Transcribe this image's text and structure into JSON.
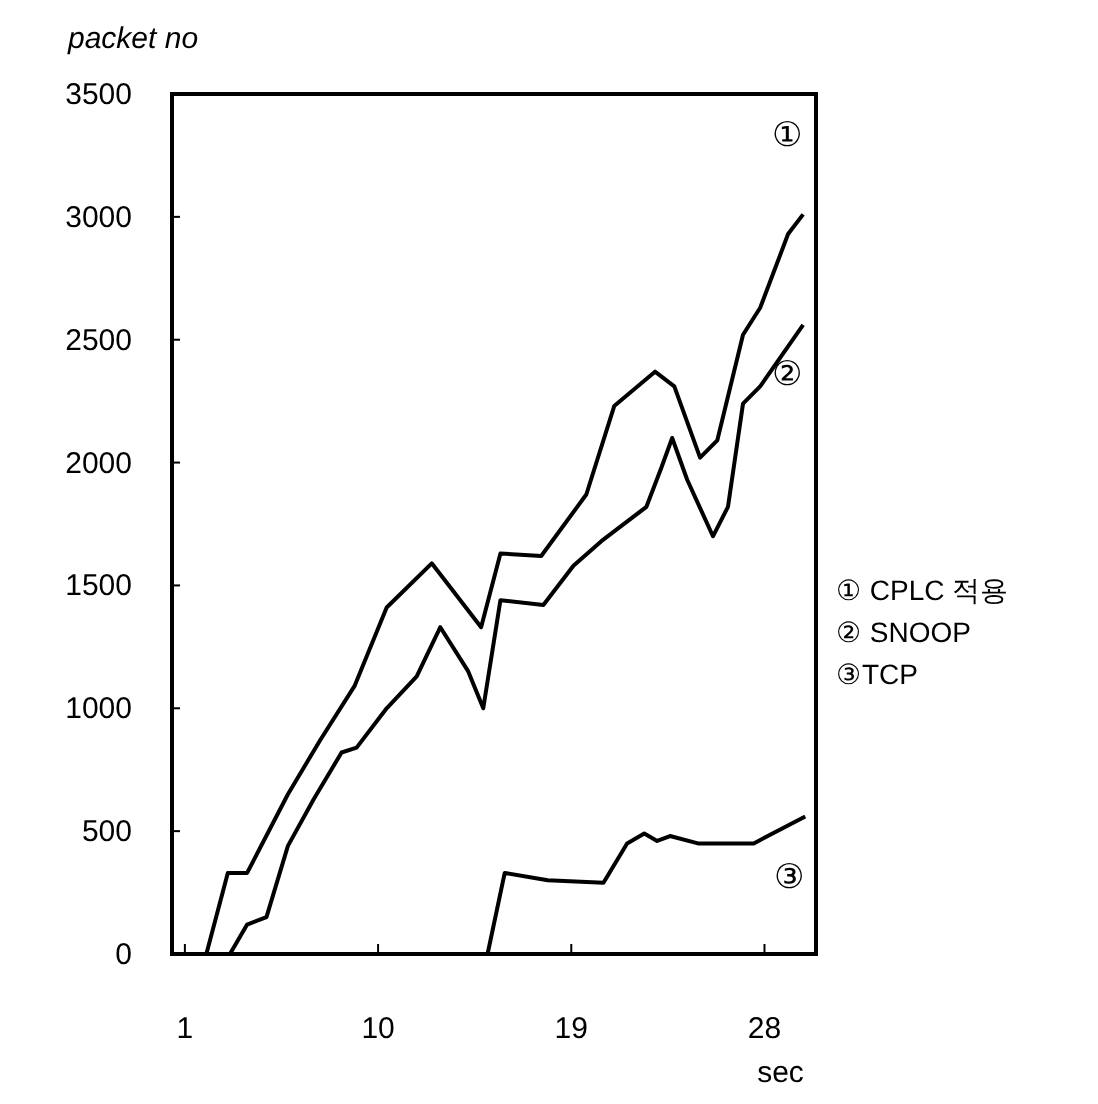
{
  "chart_data": {
    "type": "line",
    "ylabel": "packet no",
    "xlabel": "sec",
    "xlim": [
      0.4,
      30.4
    ],
    "ylim": [
      0,
      3500
    ],
    "xticks": [
      1,
      10,
      19,
      28
    ],
    "yticks": [
      0,
      500,
      1000,
      1500,
      2000,
      2500,
      3000,
      3500
    ],
    "grid": false,
    "legend": "right",
    "marker": "none",
    "line_style": "solid",
    "series": [
      {
        "name": "① CPLC 적용",
        "color": "#000000",
        "x": [
          2.0,
          3.0,
          3.9,
          5.8,
          7.3,
          8.9,
          10.4,
          12.5,
          14.8,
          15.7,
          17.6,
          19.7,
          21.0,
          22.9,
          23.8,
          25.0,
          25.8,
          27.0,
          27.8,
          29.1,
          29.8
        ],
        "values": [
          0,
          330,
          330,
          650,
          870,
          1090,
          1410,
          1590,
          1330,
          1630,
          1620,
          1870,
          2230,
          2370,
          2310,
          2020,
          2090,
          2520,
          2630,
          2930,
          3010
        ]
      },
      {
        "name": "② SNOOP",
        "color": "#000000",
        "x": [
          3.1,
          3.9,
          4.8,
          5.8,
          7.0,
          8.3,
          9.0,
          10.4,
          11.8,
          12.9,
          14.2,
          14.9,
          15.7,
          17.7,
          19.1,
          20.4,
          22.5,
          23.2,
          23.7,
          24.4,
          25.6,
          26.3,
          27.0,
          27.8,
          29.8
        ],
        "values": [
          0,
          120,
          150,
          440,
          630,
          820,
          840,
          1000,
          1130,
          1330,
          1150,
          1000,
          1440,
          1420,
          1580,
          1680,
          1820,
          1980,
          2100,
          1930,
          1700,
          1820,
          2240,
          2310,
          2560
        ]
      },
      {
        "name": "③TCP",
        "color": "#000000",
        "x": [
          15.1,
          15.9,
          17.9,
          20.5,
          21.6,
          22.4,
          23.0,
          23.6,
          24.9,
          27.5,
          29.9
        ],
        "values": [
          0,
          330,
          300,
          290,
          450,
          490,
          460,
          480,
          450,
          450,
          560
        ]
      }
    ],
    "annotations": [
      "①",
      "②",
      "③"
    ]
  }
}
